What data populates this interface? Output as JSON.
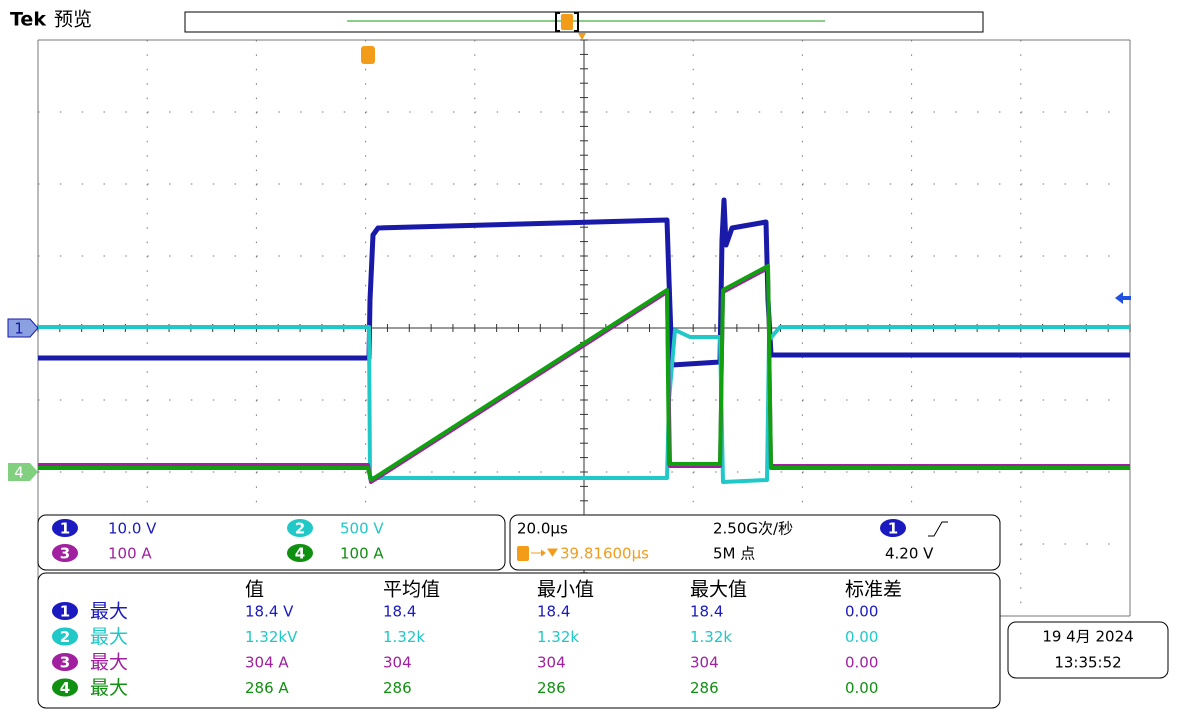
{
  "header": {
    "brand": "Tek",
    "mode": "预览"
  },
  "markers": {
    "ch1": "1",
    "ch4": "4"
  },
  "channels": [
    {
      "number": "1",
      "scale": "10.0 V"
    },
    {
      "number": "2",
      "scale": "500 V"
    },
    {
      "number": "3",
      "scale": "100 A"
    },
    {
      "number": "4",
      "scale": "100 A"
    }
  ],
  "acquisition": {
    "horizontal_scale": "20.0µs",
    "sample_rate": "2.50G次/秒",
    "trigger_source": "1",
    "position": "39.81600µs",
    "record_length": "5M 点",
    "trigger_level": "4.20 V"
  },
  "measurements": {
    "headers": [
      "值",
      "平均值",
      "最小值",
      "最大值",
      "标准差"
    ],
    "rows": [
      {
        "channel": "1",
        "type": "最大",
        "cells": [
          "18.4 V",
          "18.4",
          "18.4",
          "18.4",
          "0.00"
        ]
      },
      {
        "channel": "2",
        "type": "最大",
        "cells": [
          "1.32kV",
          "1.32k",
          "1.32k",
          "1.32k",
          "0.00"
        ]
      },
      {
        "channel": "3",
        "type": "最大",
        "cells": [
          "304 A",
          "304",
          "304",
          "304",
          "0.00"
        ]
      },
      {
        "channel": "4",
        "type": "最大",
        "cells": [
          "286 A",
          "286",
          "286",
          "286",
          "0.00"
        ]
      }
    ]
  },
  "datetime": {
    "date": "19 4月 2024",
    "time": "13:35:52"
  }
}
